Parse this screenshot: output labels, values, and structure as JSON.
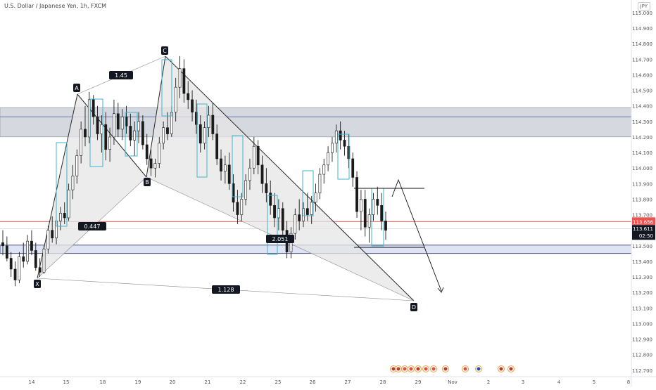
{
  "symbol": {
    "title": "U.S. Dollar / Japanese Yen, 1h, FXCM",
    "currency": "JPY"
  },
  "colors": {
    "background": "#ffffff",
    "candle": "#1a1a1a",
    "pattern_fill": "#e6e6e6",
    "pattern_stroke": "#2a2a2a",
    "resistance_zone": "#d5d8df",
    "support_zone": "#dfe4f4",
    "horizontal_line": "#e06a6a",
    "box_stroke": "#3fb4cc",
    "label_bg": "#131722",
    "label_fg": "#ffffff",
    "price_tag": "#ef5350"
  },
  "price_scale": {
    "ticks": [
      "115.000",
      "114.900",
      "114.800",
      "114.700",
      "114.600",
      "114.500",
      "114.400",
      "114.300",
      "114.200",
      "114.100",
      "114.000",
      "113.900",
      "113.800",
      "113.700",
      "113.600",
      "113.500",
      "113.400",
      "113.300",
      "113.200",
      "113.100",
      "113.000",
      "112.900",
      "112.800",
      "112.700"
    ],
    "last_price": "113.656",
    "current_price": "113.611",
    "countdown": "02:50"
  },
  "time_axis": {
    "labels": [
      "14",
      "15",
      "18",
      "19",
      "20",
      "21",
      "22",
      "25",
      "26",
      "27",
      "28",
      "29",
      "Nov",
      "2",
      "3",
      "4",
      "5",
      "8"
    ]
  },
  "chart_data": {
    "type": "candlestick",
    "title": "U.S. Dollar / Japanese Yen, 1h, FXCM",
    "y_range": [
      112.7,
      115.0
    ],
    "pattern_points": [
      {
        "label": "X",
        "price": 113.3
      },
      {
        "label": "A",
        "price": 114.49
      },
      {
        "label": "B",
        "price": 113.94
      },
      {
        "label": "C",
        "price": 114.72
      },
      {
        "label": "D",
        "price": 113.15
      }
    ],
    "ratios": [
      "1.45",
      "0.447",
      "2.051",
      "1.128"
    ],
    "zones": [
      {
        "name": "resistance",
        "from": 114.21,
        "to": 114.38
      },
      {
        "name": "support",
        "from": 113.46,
        "to": 113.5
      }
    ],
    "horizontal_line": 113.656,
    "candles": [
      [
        113.52,
        113.6,
        113.44,
        113.5
      ],
      [
        113.5,
        113.56,
        113.4,
        113.42
      ],
      [
        113.42,
        113.46,
        113.3,
        113.35
      ],
      [
        113.35,
        113.4,
        113.24,
        113.28
      ],
      [
        113.28,
        113.46,
        113.26,
        113.43
      ],
      [
        113.43,
        113.52,
        113.36,
        113.4
      ],
      [
        113.4,
        113.57,
        113.38,
        113.53
      ],
      [
        113.53,
        113.6,
        113.44,
        113.47
      ],
      [
        113.47,
        113.52,
        113.34,
        113.36
      ],
      [
        113.36,
        113.42,
        113.3,
        113.33
      ],
      [
        113.33,
        113.5,
        113.32,
        113.48
      ],
      [
        113.48,
        113.63,
        113.45,
        113.6
      ],
      [
        113.6,
        113.69,
        113.52,
        113.55
      ],
      [
        113.55,
        113.68,
        113.51,
        113.66
      ],
      [
        113.66,
        113.75,
        113.6,
        113.71
      ],
      [
        113.71,
        113.78,
        113.64,
        113.68
      ],
      [
        113.68,
        113.9,
        113.66,
        113.86
      ],
      [
        113.86,
        114.02,
        113.8,
        113.95
      ],
      [
        113.95,
        114.12,
        113.9,
        114.08
      ],
      [
        114.08,
        114.3,
        114.03,
        114.25
      ],
      [
        114.25,
        114.4,
        114.14,
        114.2
      ],
      [
        114.2,
        114.49,
        114.16,
        114.44
      ],
      [
        114.44,
        114.47,
        114.28,
        114.33
      ],
      [
        114.33,
        114.4,
        114.18,
        114.22
      ],
      [
        114.22,
        114.34,
        114.1,
        114.28
      ],
      [
        114.28,
        114.36,
        114.05,
        114.12
      ],
      [
        114.12,
        114.26,
        114.04,
        114.2
      ],
      [
        114.2,
        114.44,
        114.15,
        114.35
      ],
      [
        114.35,
        114.42,
        114.2,
        114.25
      ],
      [
        114.25,
        114.38,
        114.18,
        114.33
      ],
      [
        114.33,
        114.4,
        114.22,
        114.27
      ],
      [
        114.27,
        114.35,
        114.14,
        114.18
      ],
      [
        114.18,
        114.3,
        114.08,
        114.24
      ],
      [
        114.24,
        114.36,
        114.16,
        114.3
      ],
      [
        114.3,
        114.34,
        114.12,
        114.15
      ],
      [
        114.15,
        114.22,
        114.02,
        114.06
      ],
      [
        114.06,
        114.12,
        113.95,
        114.0
      ],
      [
        114.0,
        114.06,
        113.94,
        114.03
      ],
      [
        114.03,
        114.2,
        114.0,
        114.16
      ],
      [
        114.16,
        114.3,
        114.12,
        114.26
      ],
      [
        114.26,
        114.36,
        114.18,
        114.22
      ],
      [
        114.22,
        114.4,
        114.2,
        114.36
      ],
      [
        114.36,
        114.58,
        114.3,
        114.52
      ],
      [
        114.52,
        114.72,
        114.45,
        114.64
      ],
      [
        114.64,
        114.7,
        114.42,
        114.48
      ],
      [
        114.48,
        114.56,
        114.38,
        114.44
      ],
      [
        114.44,
        114.5,
        114.3,
        114.36
      ],
      [
        114.36,
        114.44,
        114.22,
        114.28
      ],
      [
        114.28,
        114.34,
        114.1,
        114.16
      ],
      [
        114.16,
        114.3,
        114.12,
        114.26
      ],
      [
        114.26,
        114.4,
        114.2,
        114.34
      ],
      [
        114.34,
        114.42,
        114.18,
        114.22
      ],
      [
        114.22,
        114.28,
        114.02,
        114.06
      ],
      [
        114.06,
        114.12,
        113.92,
        113.98
      ],
      [
        113.98,
        114.08,
        113.9,
        114.02
      ],
      [
        114.02,
        114.1,
        113.86,
        113.9
      ],
      [
        113.9,
        113.96,
        113.72,
        113.78
      ],
      [
        113.78,
        113.86,
        113.64,
        113.7
      ],
      [
        113.7,
        113.84,
        113.66,
        113.8
      ],
      [
        113.8,
        113.96,
        113.76,
        113.92
      ],
      [
        113.92,
        114.06,
        113.86,
        114.0
      ],
      [
        114.0,
        114.2,
        113.96,
        114.14
      ],
      [
        114.14,
        114.18,
        113.96,
        114.02
      ],
      [
        114.02,
        114.08,
        113.84,
        113.9
      ],
      [
        113.9,
        114.0,
        113.78,
        113.84
      ],
      [
        113.84,
        113.92,
        113.7,
        113.76
      ],
      [
        113.76,
        113.84,
        113.62,
        113.68
      ],
      [
        113.68,
        113.8,
        113.6,
        113.74
      ],
      [
        113.74,
        113.78,
        113.56,
        113.6
      ],
      [
        113.6,
        113.66,
        113.42,
        113.46
      ],
      [
        113.46,
        113.62,
        113.42,
        113.58
      ],
      [
        113.58,
        113.74,
        113.54,
        113.7
      ],
      [
        113.7,
        113.8,
        113.6,
        113.66
      ],
      [
        113.66,
        113.78,
        113.62,
        113.74
      ],
      [
        113.74,
        113.84,
        113.66,
        113.7
      ],
      [
        113.7,
        113.82,
        113.64,
        113.78
      ],
      [
        113.78,
        113.9,
        113.72,
        113.84
      ],
      [
        113.84,
        114.0,
        113.8,
        113.96
      ],
      [
        113.96,
        114.06,
        113.9,
        114.02
      ],
      [
        114.02,
        114.14,
        113.98,
        114.1
      ],
      [
        114.1,
        114.2,
        114.04,
        114.16
      ],
      [
        114.16,
        114.28,
        114.1,
        114.24
      ],
      [
        114.24,
        114.3,
        114.12,
        114.18
      ],
      [
        114.18,
        114.24,
        114.08,
        114.14
      ],
      [
        114.14,
        114.22,
        114.0,
        114.06
      ],
      [
        114.06,
        114.1,
        113.88,
        113.94
      ],
      [
        113.94,
        113.98,
        113.68,
        113.72
      ],
      [
        113.72,
        113.86,
        113.6,
        113.8
      ],
      [
        113.8,
        113.86,
        113.56,
        113.62
      ],
      [
        113.62,
        113.74,
        113.52,
        113.7
      ],
      [
        113.7,
        113.84,
        113.66,
        113.8
      ],
      [
        113.8,
        113.88,
        113.7,
        113.76
      ],
      [
        113.76,
        113.84,
        113.6,
        113.66
      ],
      [
        113.66,
        113.72,
        113.54,
        113.6
      ]
    ]
  },
  "event_icons": [
    "flag-us",
    "flag-us",
    "flag-jp",
    "flag-jp",
    "flag-us",
    "flag-jp",
    "flag-jp",
    "flag-us",
    "flag-jp",
    "flag-eu",
    "flag-us",
    "flag-us"
  ]
}
